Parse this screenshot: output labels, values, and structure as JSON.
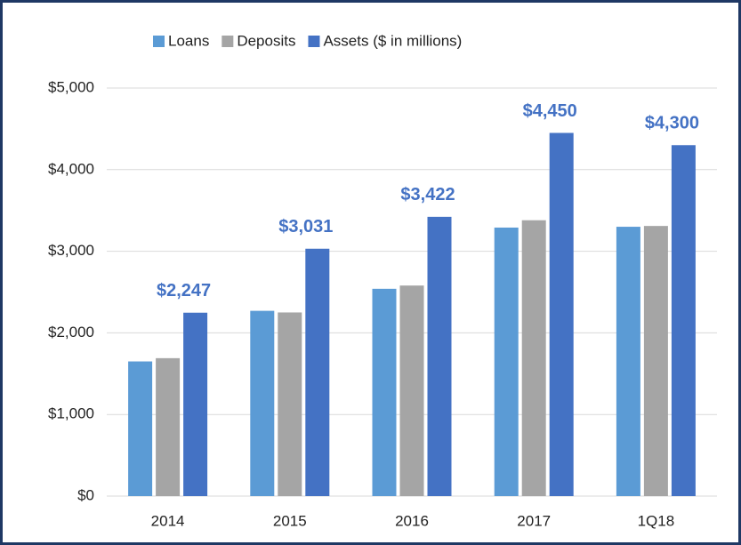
{
  "chart_data": {
    "type": "bar",
    "categories": [
      "2014",
      "2015",
      "2016",
      "2017",
      "1Q18"
    ],
    "series": [
      {
        "name": "Loans",
        "color": "#5b9bd5",
        "values": [
          1650,
          2270,
          2540,
          3290,
          3300
        ]
      },
      {
        "name": "Deposits",
        "color": "#a5a5a5",
        "values": [
          1690,
          2250,
          2580,
          3380,
          3310
        ]
      },
      {
        "name": "Assets ($ in millions)",
        "color": "#4472c4",
        "values": [
          2247,
          3031,
          3422,
          4450,
          4300
        ],
        "value_labels": [
          "$2,247",
          "$3,031",
          "$3,422",
          "$4,450",
          "$4,300"
        ]
      }
    ],
    "ylim": [
      0,
      5000
    ],
    "yticks": [
      {
        "value": 0,
        "label": "$0"
      },
      {
        "value": 1000,
        "label": "$1,000"
      },
      {
        "value": 2000,
        "label": "$2,000"
      },
      {
        "value": 3000,
        "label": "$3,000"
      },
      {
        "value": 4000,
        "label": "$4,000"
      },
      {
        "value": 5000,
        "label": "$5,000"
      }
    ],
    "grid": true,
    "legend": "top"
  }
}
